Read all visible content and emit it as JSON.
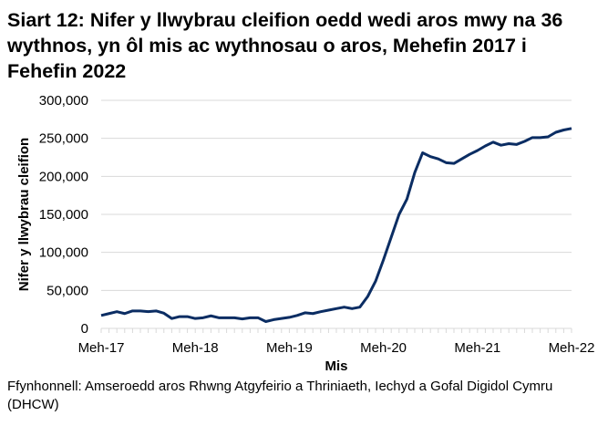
{
  "title": "Siart 12: Nifer y llwybrau cleifion oedd wedi aros mwy na 36 wythnos, yn ôl mis ac wythnosau o aros, Mehefin 2017 i Fehefin 2022",
  "source": "Ffynhonnell: Amseroedd aros Rhwng Atgyfeirio a Thriniaeth, Iechyd a Gofal Digidol Cymru (DHCW)",
  "chart_data": {
    "type": "line",
    "title": "Siart 12: Nifer y llwybrau cleifion oedd wedi aros mwy na 36 wythnos, yn ôl mis ac wythnosau o aros, Mehefin 2017 i Fehefin 2022",
    "xlabel": "Mis",
    "ylabel": "Nifer y llwybrau cleifion",
    "ylim": [
      0,
      300000
    ],
    "yticks": [
      "0",
      "50,000",
      "100,000",
      "150,000",
      "200,000",
      "250,000",
      "300,000"
    ],
    "xticklabels": [
      "Meh-17",
      "Meh-18",
      "Meh-19",
      "Meh-20",
      "Meh-21",
      "Meh-22"
    ],
    "x_start": "2017-06",
    "x_end": "2022-06",
    "grid": "horizontal",
    "color": "#0b2d63",
    "values": [
      17000,
      19500,
      22000,
      19500,
      23000,
      23000,
      22000,
      23000,
      20000,
      13000,
      15500,
      15500,
      13000,
      14000,
      16500,
      14000,
      14000,
      14000,
      12500,
      14000,
      14000,
      9000,
      11500,
      13000,
      14500,
      17000,
      20500,
      19500,
      22000,
      24000,
      26000,
      28000,
      26000,
      28000,
      42000,
      62000,
      90000,
      120000,
      150000,
      170000,
      205000,
      231000,
      226000,
      223000,
      218000,
      217000,
      223000,
      229000,
      234000,
      240000,
      245000,
      241000,
      243000,
      242000,
      246000,
      251000,
      251000,
      252000,
      258000,
      261000,
      263000
    ]
  }
}
